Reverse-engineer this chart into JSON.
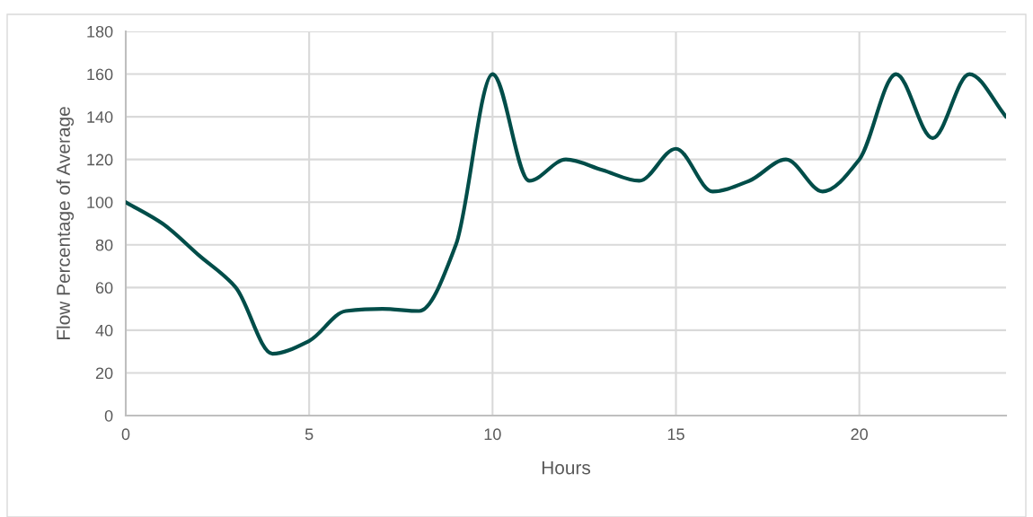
{
  "chart_data": {
    "type": "line",
    "xlabel": "Hours",
    "ylabel": "Flow Percentage of Average",
    "x": [
      0,
      1,
      2,
      3,
      4,
      5,
      6,
      7,
      8,
      9,
      10,
      11,
      12,
      13,
      14,
      15,
      16,
      17,
      18,
      19,
      20,
      21,
      22,
      23,
      24
    ],
    "series": [
      {
        "color": "#004d49",
        "values": [
          100,
          90,
          75,
          60,
          29,
          35,
          49,
          50,
          49,
          80,
          160,
          110,
          120,
          115,
          110,
          125,
          105,
          110,
          120,
          105,
          120,
          160,
          130,
          160,
          140
        ]
      }
    ],
    "xlim": [
      0,
      24
    ],
    "xticks": [
      0,
      5,
      10,
      15,
      20
    ],
    "ylim": [
      0,
      180
    ],
    "yticks": [
      0,
      20,
      40,
      60,
      80,
      100,
      120,
      140,
      160,
      180
    ],
    "grid": true,
    "marker": "none",
    "line_style": "solid"
  }
}
